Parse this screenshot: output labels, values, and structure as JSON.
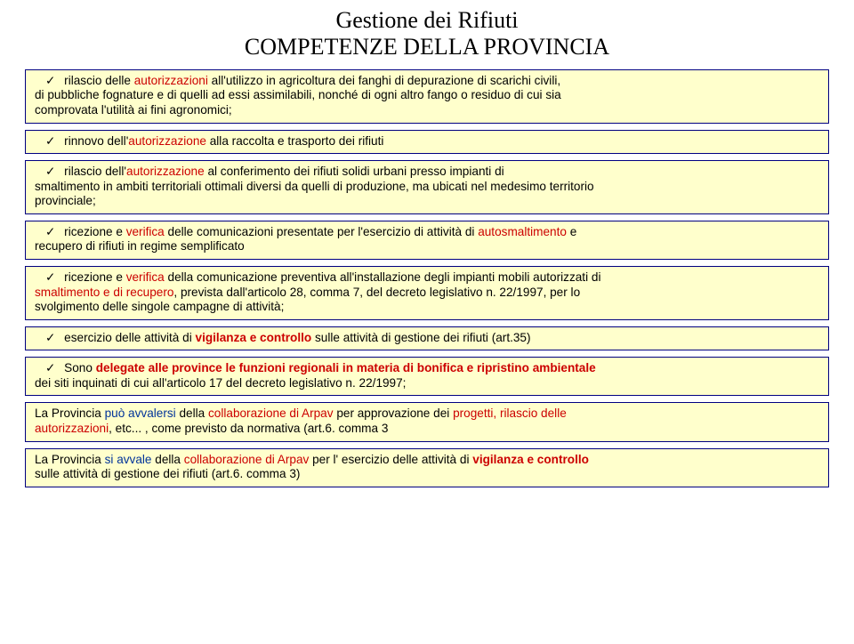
{
  "title": {
    "line1": "Gestione dei Rifiuti",
    "line2": "COMPETENZE DELLA PROVINCIA"
  },
  "boxes": {
    "b1": {
      "pre": "rilascio delle ",
      "hl1": "autorizzazioni",
      "mid1": " all'utilizzo in agricoltura dei fanghi di depurazione di scarichi civili,",
      "line2a": "di    pubbliche fognature e di quelli ad essi assimilabili, nonché di ogni altro fango o residuo di cui sia",
      "line3": "comprovata l'utilità ai fini agronomici;"
    },
    "b2": {
      "pre": "rinnovo dell'",
      "hl1": "autorizzazione",
      "post": " alla raccolta e trasporto dei rifiuti"
    },
    "b3": {
      "pre": "rilascio dell'",
      "hl1": "autorizzazione",
      "mid": " al conferimento dei rifiuti solidi urbani presso impianti di",
      "line2": "smaltimento in ambiti territoriali ottimali diversi da quelli di produzione, ma ubicati nel medesimo territorio",
      "line3": "provinciale;"
    },
    "b4": {
      "pre": "ricezione e ",
      "hl1": "verifica",
      "mid": " delle comunicazioni presentate per l'esercizio di attività di ",
      "hl2": "autosmaltimento",
      "post": " e",
      "line2": "recupero di rifiuti in regime semplificato"
    },
    "b5": {
      "pre": "ricezione e ",
      "hl1": "verifica",
      "mid1": " della comunicazione preventiva all'installazione degli impianti mobili autorizzati di",
      "line2a": "smaltimento e di recupero",
      "line2b": ", prevista dall'articolo 28, comma 7, del decreto legislativo n. 22/1997, per lo",
      "line3": "svolgimento delle singole campagne di attività;"
    },
    "b6": {
      "pre": "esercizio delle attività di ",
      "hl1": "vigilanza e controllo",
      "post": " sulle attività di gestione dei rifiuti (art.35)"
    },
    "b7": {
      "pre": "Sono ",
      "hl1": "delegate alle province le funzioni regionali in materia di bonifica e ripristino ambientale",
      "line2": "dei siti    inquinati di cui all'articolo 17 del decreto legislativo n. 22/1997;"
    },
    "b8": {
      "pre": "La Provincia ",
      "hl1": "può avvalersi",
      "mid1": " della ",
      "hl2": "collaborazione di Arpav",
      "mid2": " per approvazione dei ",
      "hl3": "progetti, rilascio delle",
      "line2a": "autorizzazioni",
      "line2b": ", etc... , come previsto da normativa (art.6. comma 3"
    },
    "b9": {
      "pre": "La Provincia ",
      "hl1": "si avvale",
      "mid1": " della ",
      "hl2": "collaborazione di Arpav",
      "mid2": " per l' esercizio delle attività di ",
      "hl3": "vigilanza e controllo",
      "line2": "sulle attività di gestione dei rifiuti (art.6. comma 3)"
    }
  },
  "check": "✓"
}
